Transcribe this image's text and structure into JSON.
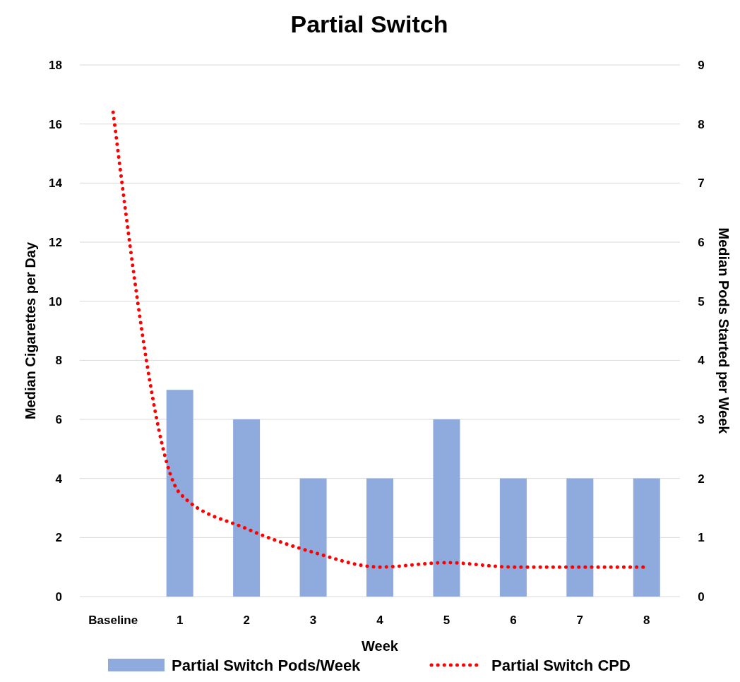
{
  "chart_data": {
    "type": "bar",
    "title": "Partial Switch",
    "xlabel": "Week",
    "ylabel": "Median Cigarettes per Day",
    "y2label": "Median Pods Started per Week",
    "categories": [
      "Baseline",
      "1",
      "2",
      "3",
      "4",
      "5",
      "6",
      "7",
      "8"
    ],
    "series": [
      {
        "name": "Partial Switch Pods/Week",
        "axis": "y2",
        "color": "#8faadc",
        "values": [
          null,
          3.5,
          3,
          2,
          2,
          3,
          2,
          2,
          2
        ]
      },
      {
        "name": "Partial Switch CPD",
        "type": "line",
        "axis": "y",
        "color": "#ff0000",
        "line_style": "dotted",
        "values": [
          16.4,
          3.5,
          2.3,
          1.5,
          1.0,
          1.15,
          1.0,
          1.0,
          1.0
        ]
      }
    ],
    "ylim": [
      0,
      18
    ],
    "yticks": [
      0,
      2,
      4,
      6,
      8,
      10,
      12,
      14,
      16,
      18
    ],
    "y2lim": [
      0,
      9
    ],
    "y2ticks": [
      0,
      1,
      2,
      3,
      4,
      5,
      6,
      7,
      8,
      9
    ],
    "grid": "y",
    "legend": "bottom"
  }
}
